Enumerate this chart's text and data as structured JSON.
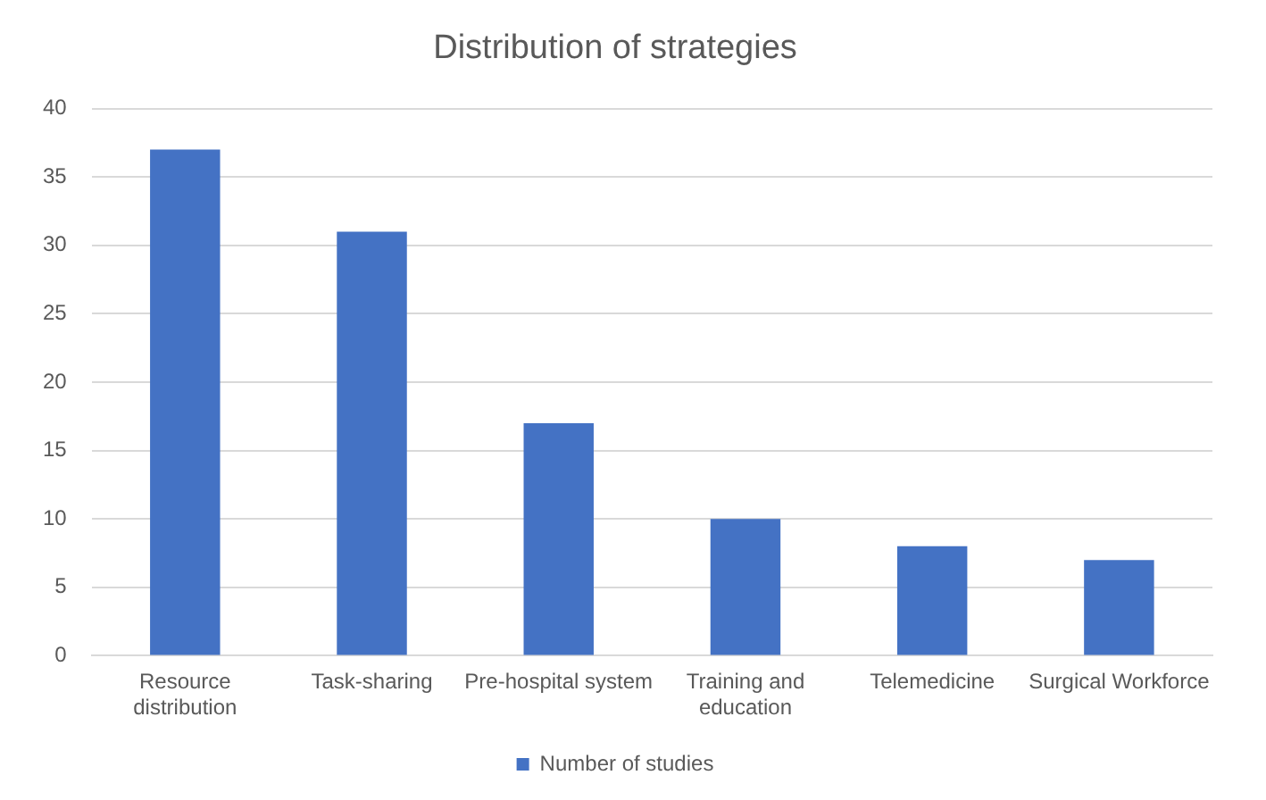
{
  "chart_data": {
    "type": "bar",
    "title": "Distribution of strategies",
    "categories": [
      "Resource distribution",
      "Task-sharing",
      "Pre-hospital system",
      "Training and education",
      "Telemedicine",
      "Surgical Workforce"
    ],
    "series": [
      {
        "name": "Number of studies",
        "color": "#4472c4",
        "values": [
          37,
          31,
          17,
          10,
          8,
          7
        ]
      }
    ],
    "ylim": [
      0,
      40
    ],
    "yticks": [
      0,
      5,
      10,
      15,
      20,
      25,
      30,
      35,
      40
    ],
    "grid": "y",
    "legend": "bottom"
  }
}
